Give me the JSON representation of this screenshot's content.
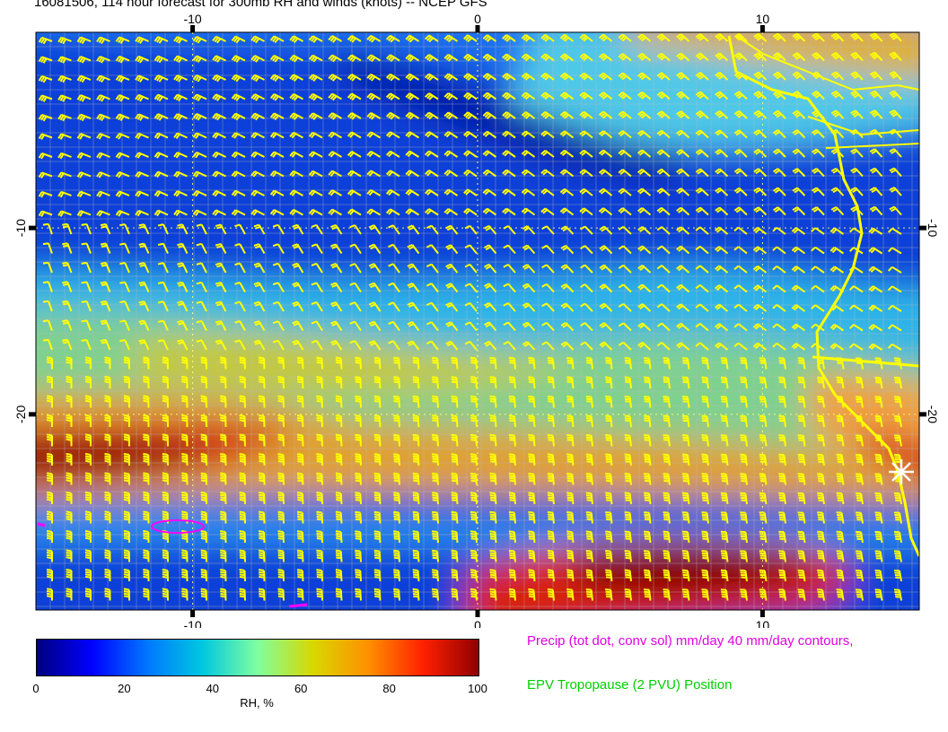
{
  "title": "16081506, 114 hour forecast for 300mb RH and winds (knots) -- NCEP GFS",
  "map": {
    "lon_ticks": [
      "-10",
      "0",
      "10"
    ],
    "lon_values": [
      -10,
      0,
      10
    ],
    "lat_ticks": [
      "-10",
      "-20"
    ],
    "lat_values": [
      -10,
      -20
    ],
    "lon_range": [
      -15.5,
      15.5
    ],
    "lat_range": [
      -30.5,
      0.5
    ],
    "marker": "star-marker"
  },
  "colorbar": {
    "ticks": [
      "0",
      "20",
      "40",
      "60",
      "80",
      "100"
    ],
    "values": [
      0,
      20,
      40,
      60,
      80,
      100
    ],
    "label": "RH, %",
    "colors": [
      "#00007f",
      "#0000ff",
      "#0077ff",
      "#00c8e0",
      "#7fffa0",
      "#d8d800",
      "#ff9000",
      "#ff2000",
      "#900000"
    ]
  },
  "legend": {
    "precip": "Precip (tot dot, conv sol) mm/day 40 mm/day contours,",
    "epv": "EPV Tropopause (2 PVU) Position"
  },
  "colors": {
    "barb": "#ffff00",
    "coast": "#ffff00",
    "precip": "#ff00ff",
    "epv": "#00d000"
  }
}
